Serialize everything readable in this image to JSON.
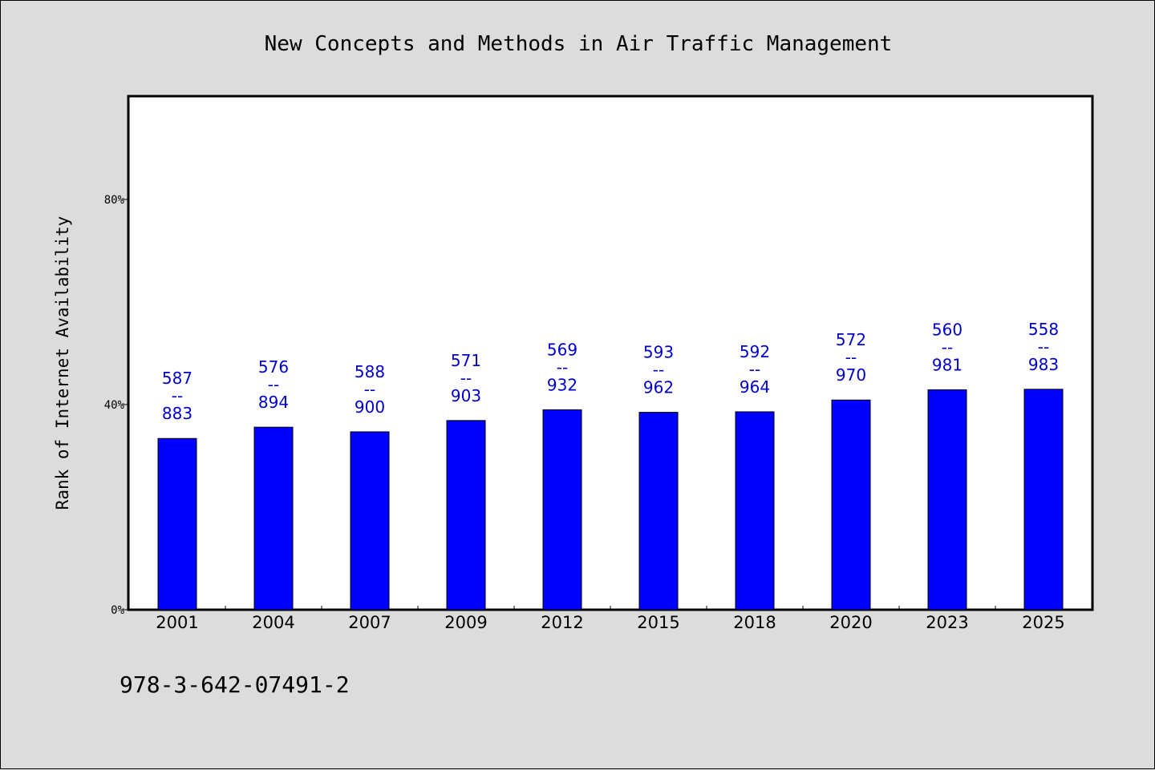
{
  "chart_data": {
    "type": "bar",
    "title": "New Concepts and Methods in Air Traffic Management",
    "ylabel": "Rank of Internet Availability",
    "xlabel": "",
    "categories": [
      "2001",
      "2004",
      "2007",
      "2009",
      "2012",
      "2015",
      "2018",
      "2020",
      "2023",
      "2025"
    ],
    "values": [
      33.4,
      35.6,
      34.7,
      36.9,
      39.0,
      38.5,
      38.6,
      40.9,
      42.9,
      43.0
    ],
    "data_labels": [
      {
        "top": "587",
        "bottom": "883"
      },
      {
        "top": "576",
        "bottom": "894"
      },
      {
        "top": "588",
        "bottom": "900"
      },
      {
        "top": "571",
        "bottom": "903"
      },
      {
        "top": "569",
        "bottom": "932"
      },
      {
        "top": "593",
        "bottom": "962"
      },
      {
        "top": "592",
        "bottom": "964"
      },
      {
        "top": "572",
        "bottom": "970"
      },
      {
        "top": "560",
        "bottom": "981"
      },
      {
        "top": "558",
        "bottom": "983"
      }
    ],
    "label_separator": "--",
    "ylim": [
      0,
      100
    ],
    "yticks": [
      0,
      40,
      80
    ],
    "ytick_labels": [
      "0%",
      "40%",
      "80%"
    ],
    "grid": false,
    "colors": {
      "bar": "#0000ff",
      "label": "#0000cc",
      "background": "#dcdcdc",
      "plot_background": "#ffffff"
    }
  },
  "footer": {
    "isbn": "978-3-642-07491-2"
  }
}
